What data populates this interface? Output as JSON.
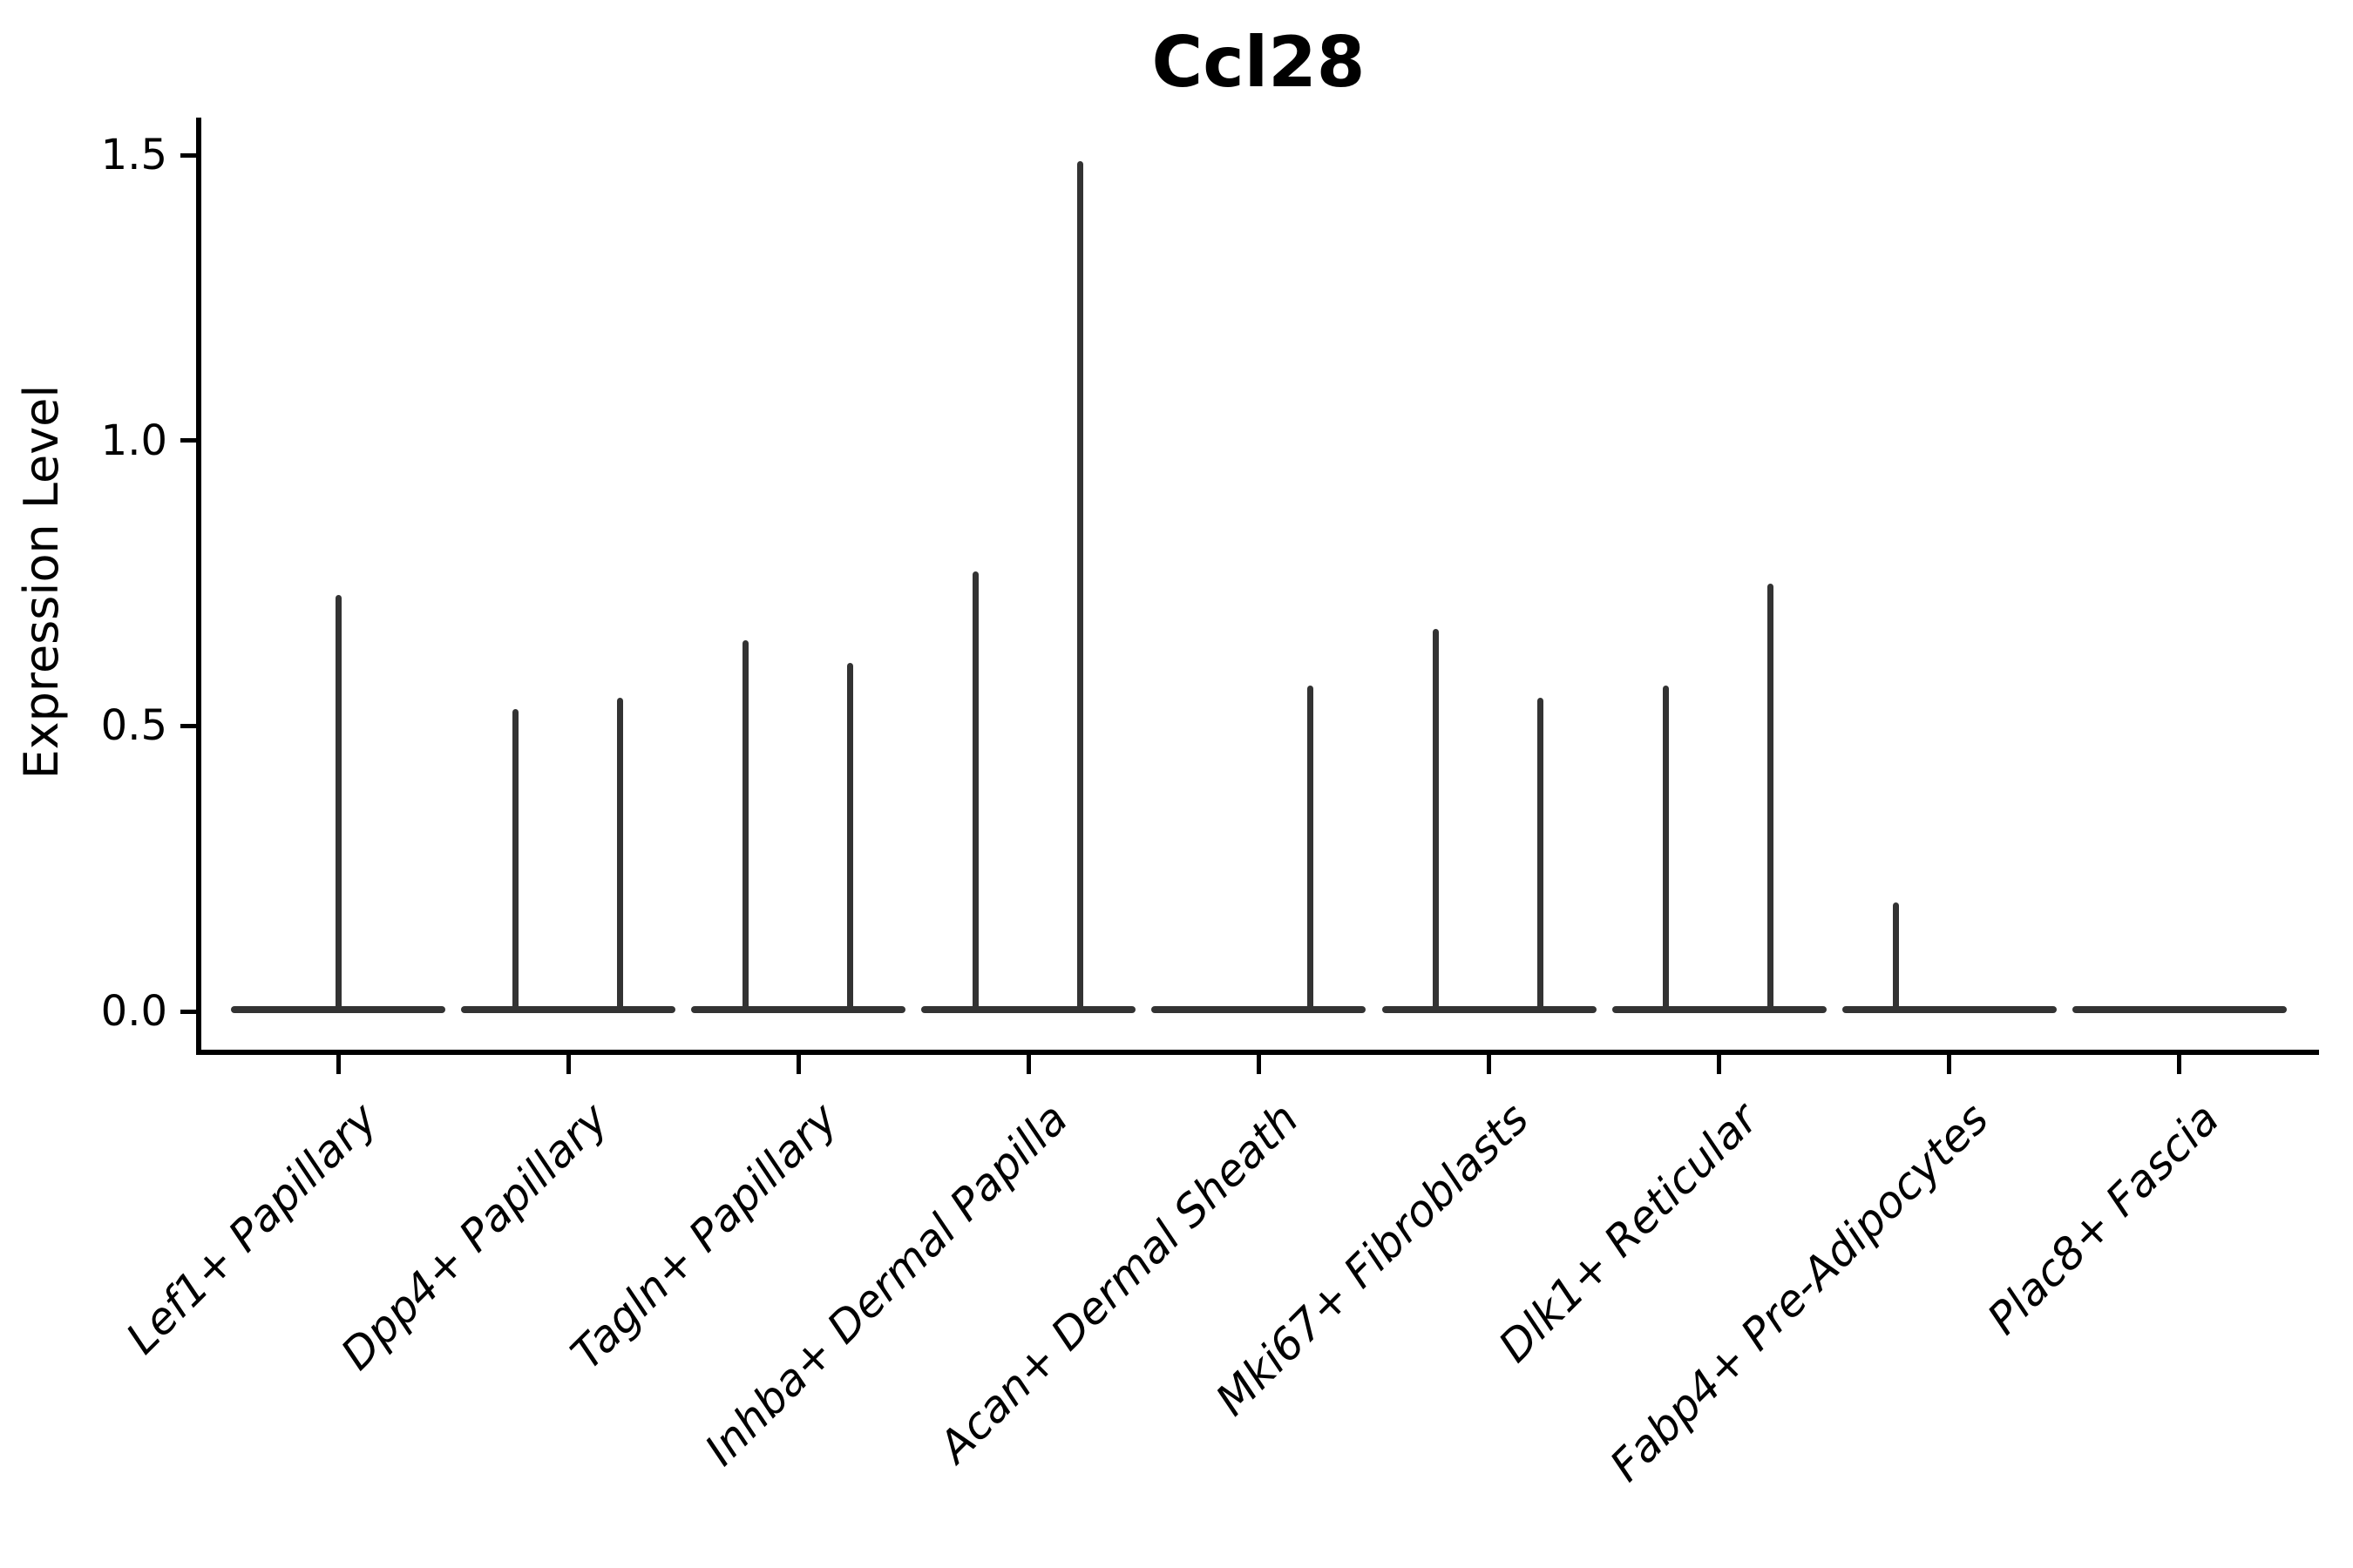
{
  "figure": {
    "title": "Ccl28",
    "ylabel": "Expression Level"
  },
  "chart_data": {
    "type": "violin",
    "title": "Ccl28",
    "xlabel": "",
    "ylabel": "Expression Level",
    "ylim": [
      -0.07,
      1.57
    ],
    "grid": false,
    "legend": "none",
    "violin_color": "#333333",
    "yticks": [
      {
        "value": 0.0,
        "label": "0.0"
      },
      {
        "value": 0.5,
        "label": "0.5"
      },
      {
        "value": 1.0,
        "label": "1.0"
      },
      {
        "value": 1.5,
        "label": "1.5"
      }
    ],
    "baseline_value": 0.0,
    "note": "Each cell type shows a flattened violin at expression 0 with thin density spikes reaching the listed maximum expression values",
    "categories": [
      {
        "label": "Lef1+ Papillary",
        "spikes": [
          {
            "pos": "center",
            "max": 0.73
          }
        ]
      },
      {
        "label": "Dpp4+ Papillary",
        "spikes": [
          {
            "pos": "left",
            "max": 0.53
          },
          {
            "pos": "right",
            "max": 0.55
          }
        ]
      },
      {
        "label": "Tagln+ Papillary",
        "spikes": [
          {
            "pos": "left",
            "max": 0.65
          },
          {
            "pos": "right",
            "max": 0.61
          }
        ]
      },
      {
        "label": "Inhba+ Dermal Papilla",
        "spikes": [
          {
            "pos": "left",
            "max": 0.77
          },
          {
            "pos": "right",
            "max": 1.49
          }
        ]
      },
      {
        "label": "Acan+ Dermal Sheath",
        "spikes": [
          {
            "pos": "right",
            "max": 0.57
          }
        ]
      },
      {
        "label": "Mki67+ Fibroblasts",
        "spikes": [
          {
            "pos": "left",
            "max": 0.67
          },
          {
            "pos": "right",
            "max": 0.55
          }
        ]
      },
      {
        "label": "Dlk1+ Reticular",
        "spikes": [
          {
            "pos": "left",
            "max": 0.57
          },
          {
            "pos": "right",
            "max": 0.75
          }
        ]
      },
      {
        "label": "Fabp4+ Pre-Adipocytes",
        "spikes": [
          {
            "pos": "left",
            "max": 0.19
          }
        ]
      },
      {
        "label": "Plac8+ Fascia",
        "spikes": []
      }
    ]
  }
}
